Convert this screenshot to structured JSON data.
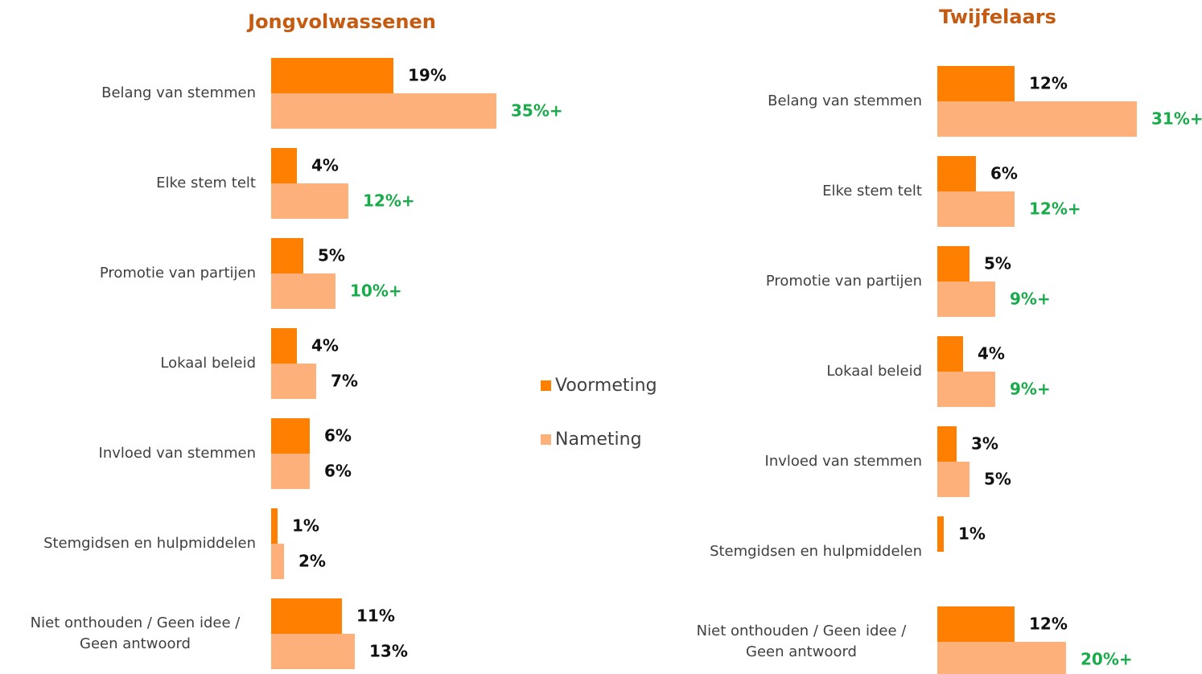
{
  "legend": {
    "position": "center"
  },
  "chart_data": [
    {
      "type": "bar",
      "orientation": "horizontal",
      "title": "Jongvolwassenen",
      "title_color": "#c55a11",
      "significant_color": "#1aab4b",
      "categories": [
        "Belang van stemmen",
        "Elke stem telt",
        "Promotie van partijen",
        "Lokaal beleid",
        "Invloed van stemmen",
        "Stemgidsen en hulpmiddelen",
        "Niet onthouden / Geen idee / Geen antwoord"
      ],
      "series": [
        {
          "name": "Voormeting",
          "color": "#ff7f00",
          "values": [
            19,
            4,
            5,
            4,
            6,
            1,
            11
          ],
          "value_labels": [
            "19%",
            "4%",
            "5%",
            "4%",
            "6%",
            "1%",
            "11%"
          ]
        },
        {
          "name": "Nameting",
          "color": "#fdb07a",
          "values": [
            35,
            12,
            10,
            7,
            6,
            2,
            13
          ],
          "value_labels": [
            "35%+",
            "12%+",
            "10%+",
            "7%",
            "6%",
            "2%",
            "13%"
          ]
        }
      ]
    },
    {
      "type": "bar",
      "orientation": "horizontal",
      "title": "Twijfelaars",
      "title_color": "#c55a11",
      "significant_color": "#1aab4b",
      "categories": [
        "Belang van stemmen",
        "Elke stem telt",
        "Promotie van partijen",
        "Lokaal beleid",
        "Invloed van stemmen",
        "Stemgidsen en hulpmiddelen",
        "Niet onthouden / Geen idee / Geen antwoord"
      ],
      "series": [
        {
          "name": "Voormeting",
          "color": "#ff7f00",
          "values": [
            12,
            6,
            5,
            4,
            3,
            1,
            12
          ],
          "value_labels": [
            "12%",
            "6%",
            "5%",
            "4%",
            "3%",
            "1%",
            "12%"
          ]
        },
        {
          "name": "Nameting",
          "color": "#fdb07a",
          "values": [
            31,
            12,
            9,
            9,
            5,
            null,
            20
          ],
          "value_labels": [
            "31%+",
            "12%+",
            "9%+",
            "9%+",
            "5%",
            null,
            "20%+"
          ]
        }
      ]
    }
  ]
}
